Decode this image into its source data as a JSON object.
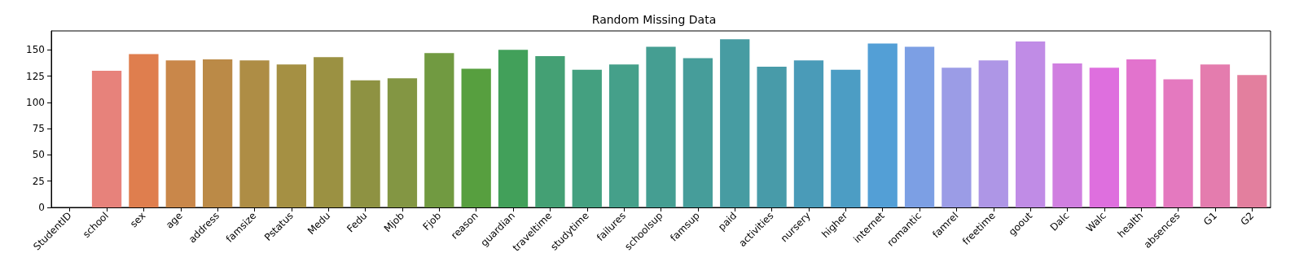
{
  "chart_data": {
    "type": "bar",
    "title": "Random Missing Data",
    "categories": [
      "StudentID",
      "school",
      "sex",
      "age",
      "address",
      "famsize",
      "Pstatus",
      "Medu",
      "Fedu",
      "Mjob",
      "Fjob",
      "reason",
      "guardian",
      "traveltime",
      "studytime",
      "failures",
      "schoolsup",
      "famsup",
      "paid",
      "activities",
      "nursery",
      "higher",
      "internet",
      "romantic",
      "famrel",
      "freetime",
      "goout",
      "Dalc",
      "Walc",
      "health",
      "absences",
      "G1",
      "G2"
    ],
    "values": [
      0,
      130,
      146,
      140,
      141,
      140,
      136,
      143,
      121,
      123,
      147,
      132,
      150,
      144,
      131,
      136,
      153,
      142,
      160,
      134,
      140,
      131,
      156,
      153,
      133,
      140,
      158,
      137,
      133,
      141,
      122,
      136,
      126
    ],
    "colors": [
      "#f77189",
      "#e7827b",
      "#df7e4e",
      "#c9874a",
      "#bb8a47",
      "#ae8d45",
      "#a59043",
      "#9b9142",
      "#8e9242",
      "#839643",
      "#719a41",
      "#579f3f",
      "#42a05a",
      "#44a074",
      "#44a080",
      "#45a08a",
      "#459e92",
      "#469d9a",
      "#479ca2",
      "#489ba9",
      "#4a9bb8",
      "#4c9dc4",
      "#539fd6",
      "#7c9fe4",
      "#9b9ce6",
      "#ae96e6",
      "#c08ce6",
      "#d07fe0",
      "#de6fde",
      "#e273cd",
      "#e479bf",
      "#e47cae",
      "#e37f9e"
    ],
    "ylim": [
      0,
      168
    ],
    "yticks": [
      0,
      25,
      50,
      75,
      100,
      125,
      150
    ],
    "grid": false
  }
}
